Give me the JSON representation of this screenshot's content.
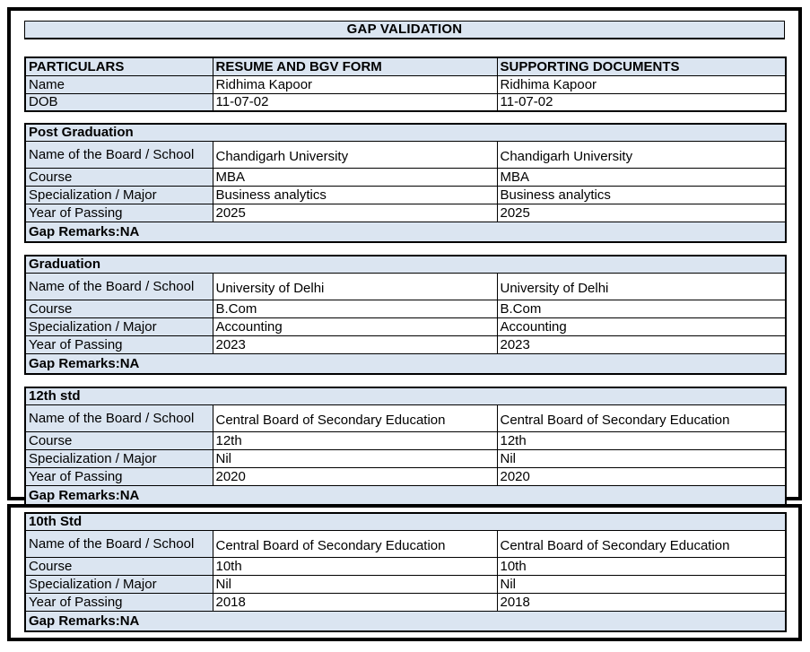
{
  "title": "GAP VALIDATION",
  "columns": [
    "PARTICULARS",
    "RESUME AND BGV FORM",
    "SUPPORTING DOCUMENTS"
  ],
  "personal": {
    "rows": [
      {
        "label": "Name",
        "resume": "Ridhima Kapoor",
        "supporting": "Ridhima Kapoor"
      },
      {
        "label": "DOB",
        "resume": "11-07-02",
        "supporting": "11-07-02"
      }
    ]
  },
  "sections": [
    {
      "title": "Post Graduation",
      "rows": [
        {
          "label": "Name of the Board / School",
          "resume": "Chandigarh University",
          "supporting": "Chandigarh University"
        },
        {
          "label": "Course",
          "resume": "MBA",
          "supporting": "MBA"
        },
        {
          "label": "Specialization / Major",
          "resume": "Business analytics",
          "supporting": "Business analytics"
        },
        {
          "label": "Year of Passing",
          "resume": "2025",
          "supporting": "2025"
        }
      ],
      "gap_remarks": "Gap Remarks:NA"
    },
    {
      "title": "Graduation",
      "rows": [
        {
          "label": "Name of the Board / School",
          "resume": "University of Delhi",
          "supporting": "University of Delhi"
        },
        {
          "label": "Course",
          "resume": "B.Com",
          "supporting": "B.Com"
        },
        {
          "label": "Specialization / Major",
          "resume": "Accounting",
          "supporting": "Accounting"
        },
        {
          "label": "Year of Passing",
          "resume": "2023",
          "supporting": "2023"
        }
      ],
      "gap_remarks": "Gap Remarks:NA"
    },
    {
      "title": "12th std",
      "rows": [
        {
          "label": "Name of the Board / School",
          "resume": "Central Board of Secondary Education",
          "supporting": "Central Board of Secondary Education"
        },
        {
          "label": "Course",
          "resume": "12th",
          "supporting": "12th"
        },
        {
          "label": "Specialization / Major",
          "resume": "Nil",
          "supporting": "Nil"
        },
        {
          "label": "Year of Passing",
          "resume": "2020",
          "supporting": "2020"
        }
      ],
      "gap_remarks": "Gap Remarks:NA"
    },
    {
      "title": "10th Std",
      "rows": [
        {
          "label": "Name of the Board / School",
          "resume": "Central Board of Secondary Education",
          "supporting": "Central Board of Secondary Education"
        },
        {
          "label": "Course",
          "resume": "10th",
          "supporting": "10th"
        },
        {
          "label": "Specialization / Major",
          "resume": "Nil",
          "supporting": "Nil"
        },
        {
          "label": "Year of Passing",
          "resume": "2018",
          "supporting": "2018"
        }
      ],
      "gap_remarks": "Gap Remarks:NA"
    }
  ],
  "colors": {
    "panel_fill": "#dbe5f1",
    "border": "#000000",
    "page_background": "#ffffff"
  }
}
